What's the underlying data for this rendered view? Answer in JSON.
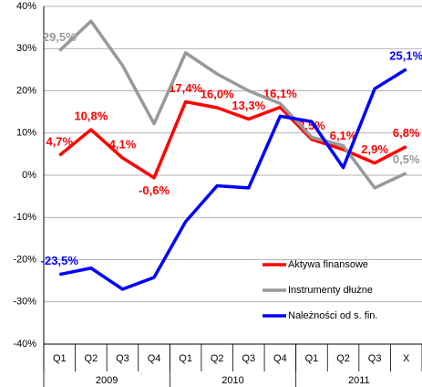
{
  "chart_data": {
    "type": "line",
    "categories": [
      "Q1",
      "Q2",
      "Q3",
      "Q4",
      "Q1",
      "Q2",
      "Q3",
      "Q4",
      "Q1",
      "Q2",
      "Q3",
      "X"
    ],
    "groups": [
      {
        "label": "2009",
        "count": 4
      },
      {
        "label": "2010",
        "count": 4
      },
      {
        "label": "2011",
        "count": 4
      }
    ],
    "series": [
      {
        "name": "Aktywa finansowe",
        "color": "#ff0000",
        "values": [
          4.7,
          10.8,
          4.1,
          -0.6,
          17.4,
          16.0,
          13.3,
          16.1,
          8.5,
          6.1,
          2.9,
          6.8
        ],
        "value_labels": [
          "4,7%",
          "10,8%",
          "4,1%",
          "-0,6%",
          "17,4%",
          "16,0%",
          "13,3%",
          "16,1%",
          "8,5%",
          "6,1%",
          "2,9%",
          "6,8%"
        ]
      },
      {
        "name": "Instrumenty dłużne",
        "color": "#999999",
        "values": [
          29.5,
          36.5,
          26,
          12.2,
          29,
          24,
          20,
          17,
          9,
          7,
          -3,
          0.5
        ],
        "value_labels": [
          "29,5%",
          null,
          null,
          null,
          null,
          null,
          null,
          null,
          null,
          null,
          null,
          "0,5%"
        ]
      },
      {
        "name": "Należności od s. fin.",
        "color": "#0000ff",
        "values": [
          -23.5,
          -22,
          -27,
          -24.2,
          -11,
          -2.5,
          -3,
          14,
          12.7,
          1.8,
          20.5,
          25.1
        ],
        "value_labels": [
          "-23,5%",
          null,
          null,
          null,
          null,
          null,
          null,
          null,
          null,
          null,
          null,
          "25,1%"
        ]
      }
    ],
    "ylim": [
      -40,
      40
    ],
    "yticks": [
      {
        "value": -40,
        "label": "-40%"
      },
      {
        "value": -30,
        "label": "-30%"
      },
      {
        "value": -20,
        "label": "-20%"
      },
      {
        "value": -10,
        "label": "-10%"
      },
      {
        "value": 0,
        "label": "0%"
      },
      {
        "value": 10,
        "label": "10%"
      },
      {
        "value": 20,
        "label": "20%"
      },
      {
        "value": 30,
        "label": "30%"
      },
      {
        "value": 40,
        "label": "40%"
      }
    ],
    "grid": true,
    "legend": "lower right"
  }
}
